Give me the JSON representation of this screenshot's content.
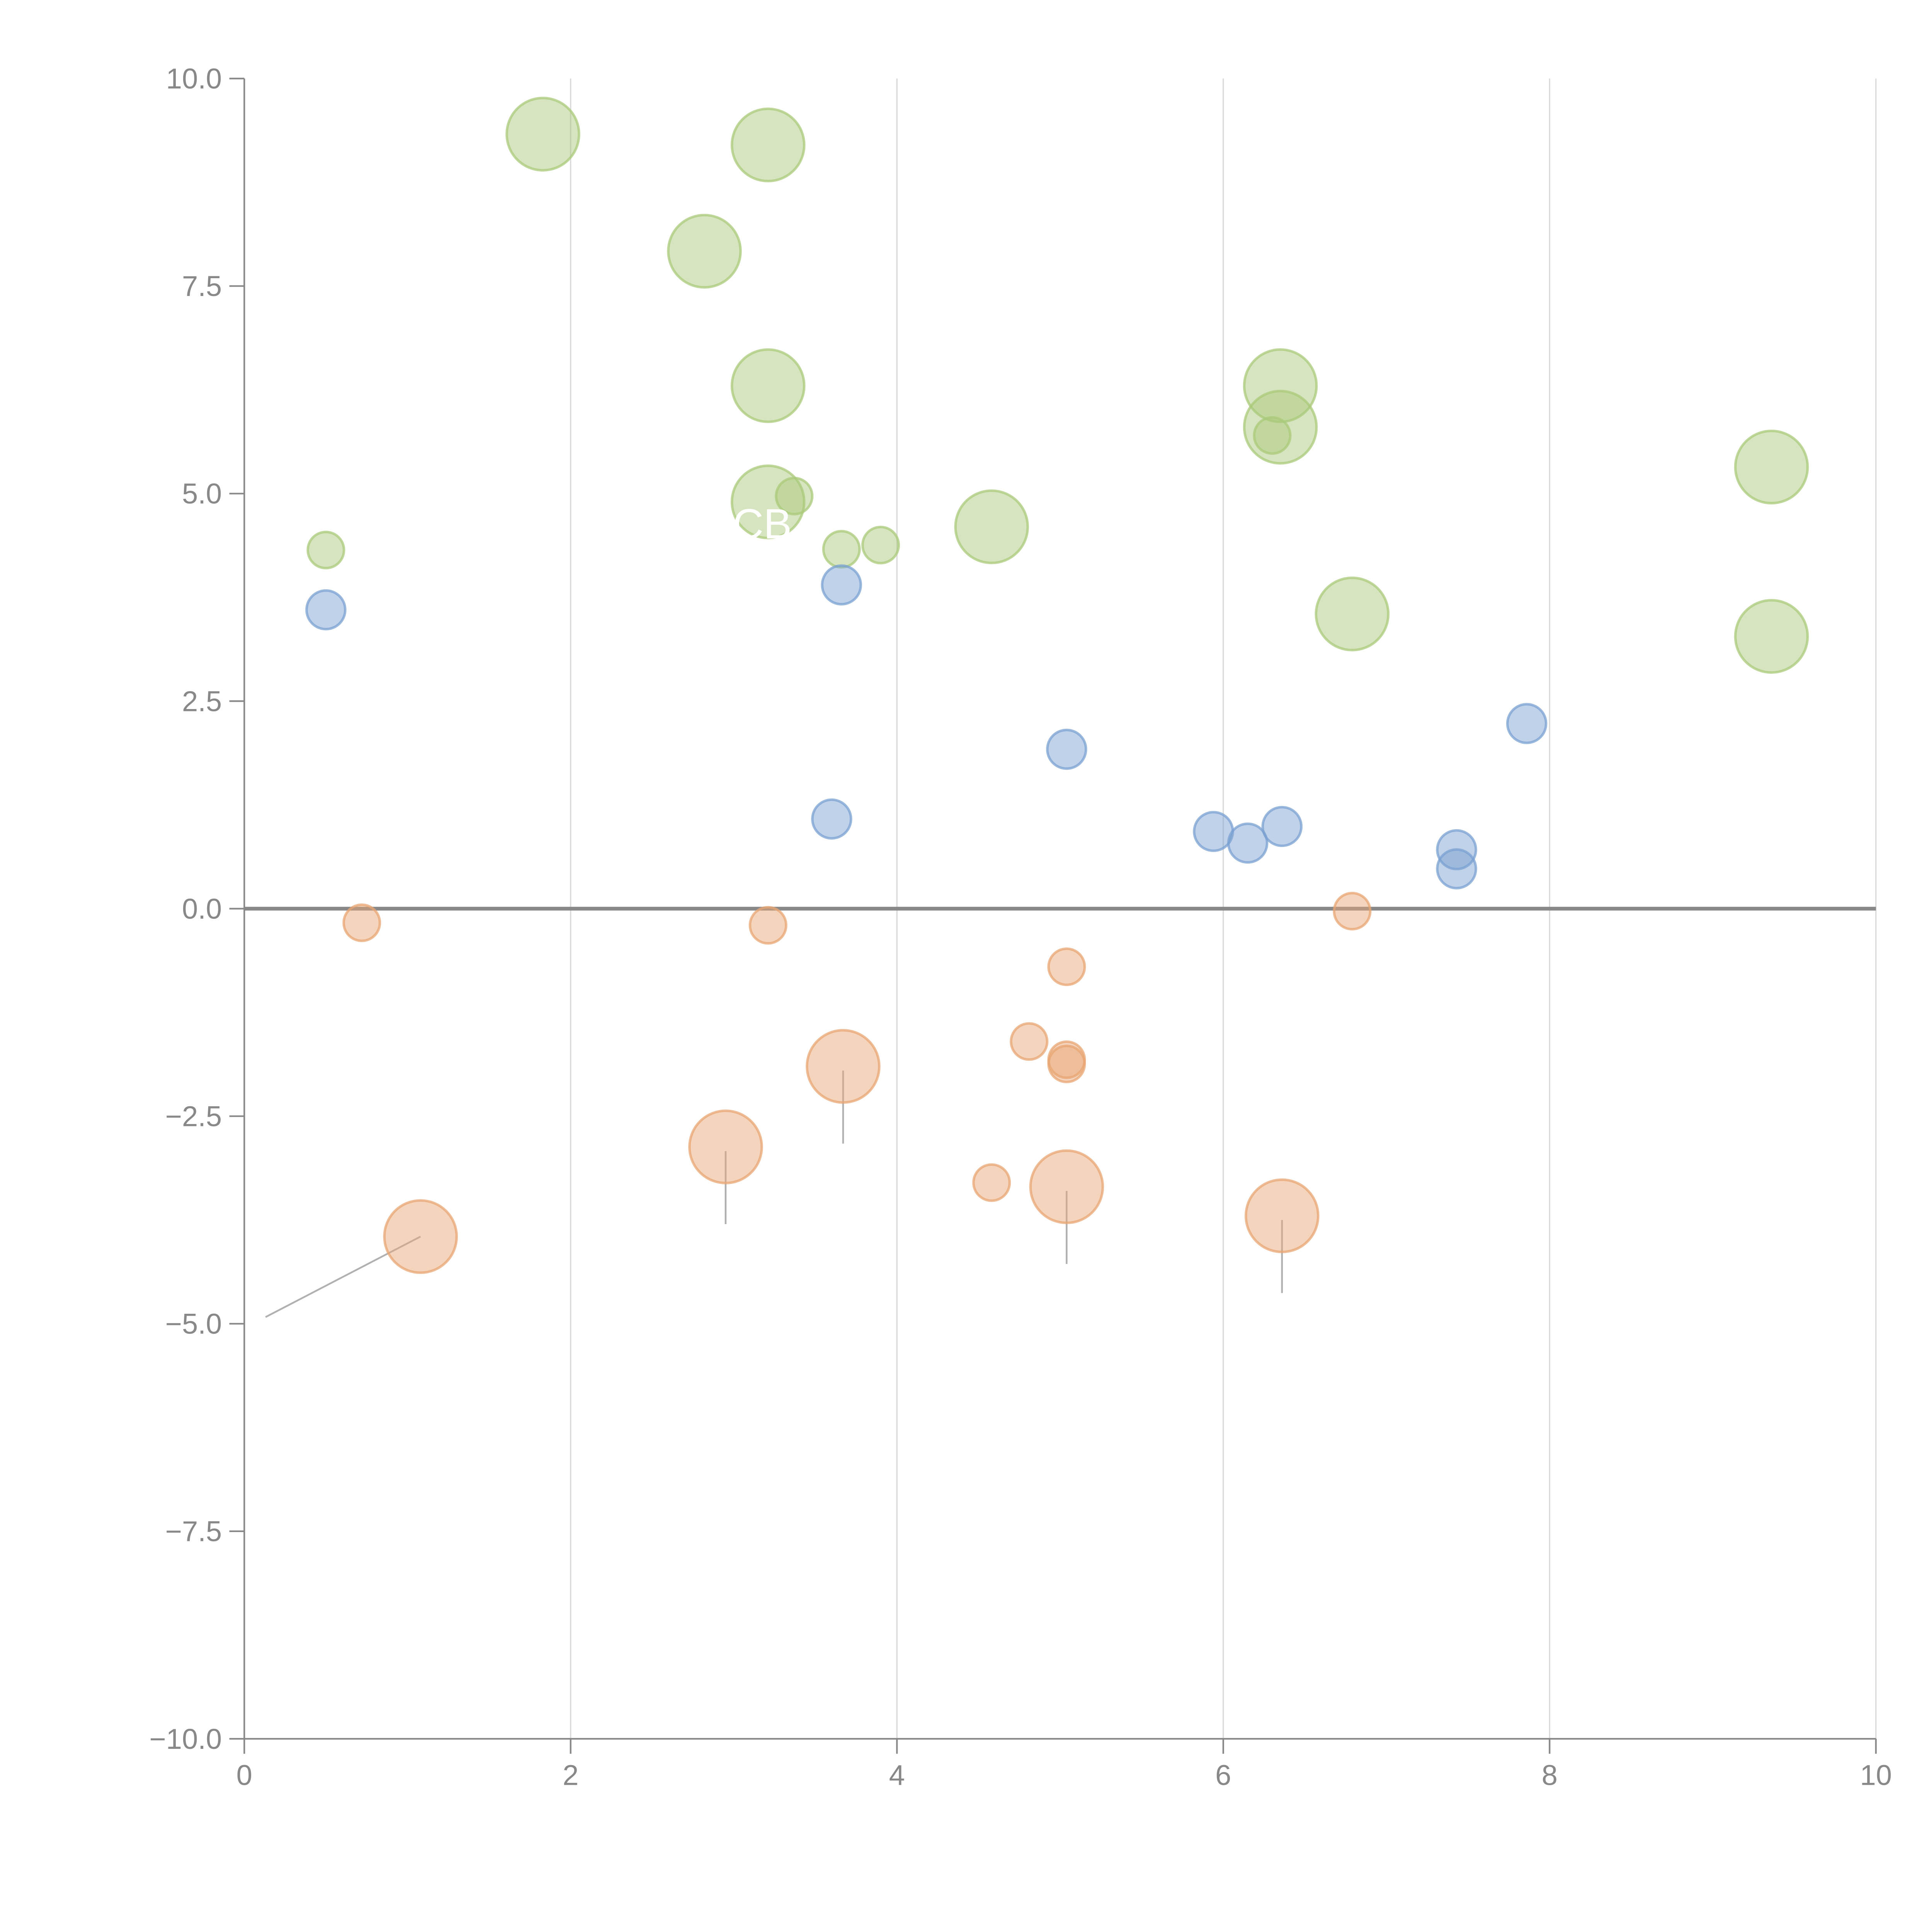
{
  "chart_data": {
    "type": "scatter",
    "subtype": "bubble",
    "title": "",
    "xlabel": "",
    "ylabel": "",
    "xlim": [
      0,
      10
    ],
    "ylim": [
      -10,
      10
    ],
    "x_ticks": [
      0,
      2,
      4,
      6,
      8,
      10
    ],
    "x_tick_labels": [
      "0",
      "2",
      "4",
      "6",
      "8",
      "10"
    ],
    "y_ticks": [
      10,
      7.5,
      5,
      2.5,
      0,
      -2.5,
      -5,
      -7.5,
      -10
    ],
    "y_tick_labels": [
      "10.0",
      "7.5",
      "5.0",
      "2.5",
      "0.0",
      "−2.5",
      "−5.0",
      "−7.5",
      "−10.0"
    ],
    "grid": "vertical",
    "zero_line": true,
    "legend": "none",
    "visible_text_annotations": [
      "CB"
    ],
    "series": [
      {
        "name": "green",
        "color": "#a9c97a",
        "points": [
          {
            "x": 1.83,
            "y": 9.33,
            "size": "large"
          },
          {
            "x": 3.21,
            "y": 9.2,
            "size": "large"
          },
          {
            "x": 2.82,
            "y": 7.92,
            "size": "large"
          },
          {
            "x": 3.21,
            "y": 6.3,
            "size": "large"
          },
          {
            "x": 3.21,
            "y": 4.9,
            "size": "large"
          },
          {
            "x": 3.37,
            "y": 4.97,
            "size": "small"
          },
          {
            "x": 3.66,
            "y": 4.33,
            "size": "small"
          },
          {
            "x": 3.9,
            "y": 4.38,
            "size": "small"
          },
          {
            "x": 4.58,
            "y": 4.6,
            "size": "large"
          },
          {
            "x": 0.5,
            "y": 4.32,
            "size": "small"
          },
          {
            "x": 6.35,
            "y": 6.3,
            "size": "large"
          },
          {
            "x": 6.35,
            "y": 5.8,
            "size": "large"
          },
          {
            "x": 6.3,
            "y": 5.7,
            "size": "small"
          },
          {
            "x": 6.79,
            "y": 3.55,
            "size": "large"
          },
          {
            "x": 9.36,
            "y": 5.32,
            "size": "large"
          },
          {
            "x": 9.36,
            "y": 3.28,
            "size": "large"
          }
        ]
      },
      {
        "name": "blue",
        "color": "#7aa0d2",
        "points": [
          {
            "x": 0.5,
            "y": 3.6,
            "size": "small"
          },
          {
            "x": 3.66,
            "y": 3.9,
            "size": "small"
          },
          {
            "x": 3.6,
            "y": 1.08,
            "size": "small"
          },
          {
            "x": 5.04,
            "y": 1.92,
            "size": "small"
          },
          {
            "x": 5.94,
            "y": 0.93,
            "size": "small"
          },
          {
            "x": 6.15,
            "y": 0.79,
            "size": "small"
          },
          {
            "x": 6.36,
            "y": 0.99,
            "size": "small"
          },
          {
            "x": 7.43,
            "y": 0.71,
            "size": "small"
          },
          {
            "x": 7.43,
            "y": 0.48,
            "size": "small"
          },
          {
            "x": 7.86,
            "y": 2.23,
            "size": "small"
          }
        ]
      },
      {
        "name": "orange",
        "color": "#e8a673",
        "points": [
          {
            "x": 0.72,
            "y": -0.17,
            "size": "small"
          },
          {
            "x": 3.21,
            "y": -0.2,
            "size": "small"
          },
          {
            "x": 1.08,
            "y": -3.95,
            "size": "large"
          },
          {
            "x": 2.95,
            "y": -2.87,
            "size": "large"
          },
          {
            "x": 3.67,
            "y": -1.9,
            "size": "large"
          },
          {
            "x": 4.58,
            "y": -3.3,
            "size": "small"
          },
          {
            "x": 4.81,
            "y": -1.6,
            "size": "small"
          },
          {
            "x": 5.04,
            "y": -0.7,
            "size": "small"
          },
          {
            "x": 5.04,
            "y": -1.82,
            "size": "small"
          },
          {
            "x": 5.04,
            "y": -1.87,
            "size": "small"
          },
          {
            "x": 5.04,
            "y": -3.35,
            "size": "large"
          },
          {
            "x": 6.79,
            "y": -0.03,
            "size": "small"
          },
          {
            "x": 6.36,
            "y": -3.7,
            "size": "large"
          }
        ]
      }
    ],
    "leader_lines": [
      {
        "series": "orange",
        "from": [
          1.08,
          -3.95
        ],
        "to": [
          0.13,
          -4.92
        ]
      },
      {
        "series": "orange",
        "from": [
          2.95,
          -2.92
        ],
        "to": [
          2.95,
          -3.8
        ]
      },
      {
        "series": "orange",
        "from": [
          3.67,
          -1.95
        ],
        "to": [
          3.67,
          -2.83
        ]
      },
      {
        "series": "orange",
        "from": [
          5.04,
          -3.4
        ],
        "to": [
          5.04,
          -4.28
        ]
      },
      {
        "series": "orange",
        "from": [
          6.36,
          -3.75
        ],
        "to": [
          6.36,
          -4.63
        ]
      },
      {
        "series": "green",
        "from": [
          1.8,
          9.32
        ],
        "to": [
          1.62,
          9.37
        ]
      },
      {
        "series": "green",
        "from": [
          3.24,
          9.21
        ],
        "to": [
          3.42,
          9.28
        ]
      },
      {
        "series": "green",
        "from": [
          3.24,
          6.31
        ],
        "to": [
          3.42,
          6.34
        ]
      },
      {
        "series": "green",
        "from": [
          4.61,
          4.6
        ],
        "to": [
          4.79,
          4.64
        ]
      },
      {
        "series": "green",
        "from": [
          6.39,
          6.36
        ],
        "to": [
          6.52,
          6.66
        ]
      },
      {
        "series": "green",
        "from": [
          6.39,
          5.78
        ],
        "to": [
          6.56,
          5.65
        ]
      },
      {
        "series": "green",
        "from": [
          9.33,
          5.36
        ],
        "to": [
          9.22,
          5.58
        ]
      }
    ]
  }
}
